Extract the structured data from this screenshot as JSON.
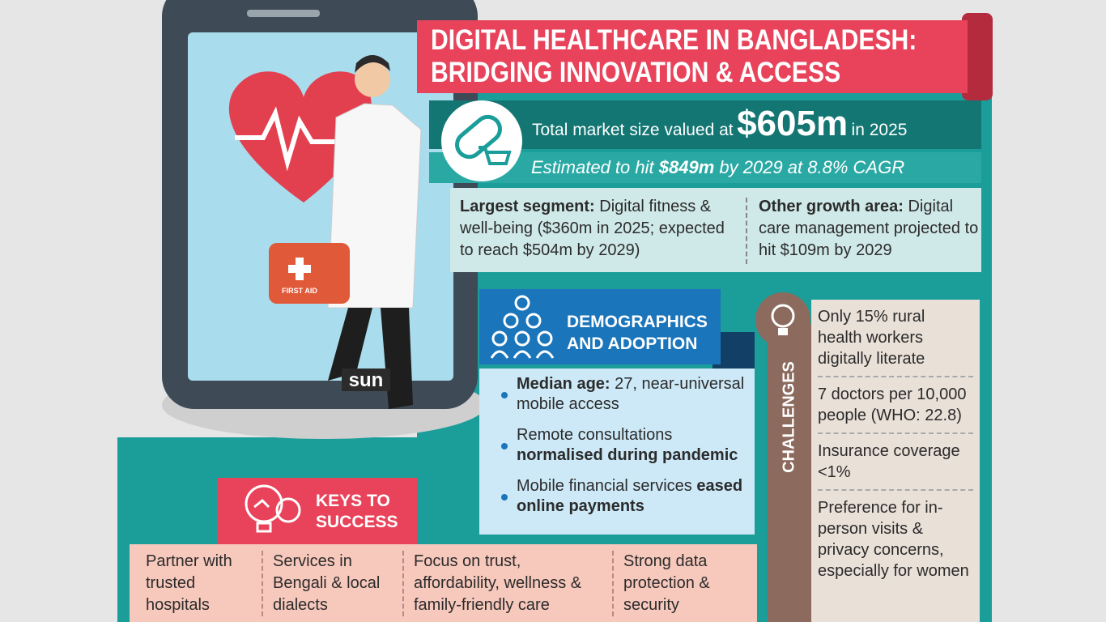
{
  "header": {
    "title_lines": [
      "DIGITAL HEALTHCARE IN BANGLADESH:",
      "BRIDGING INNOVATION & ACCESS"
    ]
  },
  "market": {
    "lead": "Total market size valued at",
    "value": "$605m",
    "tail": "in 2025",
    "forecast": {
      "lead": "Estimated to hit",
      "highlight": "$849m",
      "rest": "by 2029 at 8.8% CAGR"
    }
  },
  "segments": [
    {
      "label": "Largest segment:",
      "text": "Digital fitness & well-being ($360m in 2025; expected to reach $504m by 2029)"
    },
    {
      "label": "Other growth area:",
      "text": "Digital care management projected to hit $109m by 2029"
    }
  ],
  "demographics": {
    "title": "DEMOGRAPHICS AND ADOPTION",
    "items": [
      {
        "strong": "Median age:",
        "plain": "27, near-universal mobile access"
      },
      {
        "plain": "Remote consultations",
        "strong": "normalised during pandemic"
      },
      {
        "plain": "Mobile financial services",
        "strong": "eased online payments"
      }
    ]
  },
  "challenges": {
    "title": "CHALLENGES",
    "items": [
      "Only 15% rural health workers digitally literate",
      "7 doctors per 10,000 people (WHO: 22.8)",
      "Insurance coverage <1%",
      "Preference for in-person visits & privacy concerns, especially for women"
    ]
  },
  "keys": {
    "title": "KEYS TO SUCCESS",
    "items": [
      "Partner with trusted hospitals",
      "Services in Bengali & local dialects",
      "Focus on trust, affordability, wellness & family-friendly care",
      "Strong data protection & security"
    ]
  },
  "illustration": {
    "kit_label": "FIRST AID",
    "logo": "sun"
  }
}
